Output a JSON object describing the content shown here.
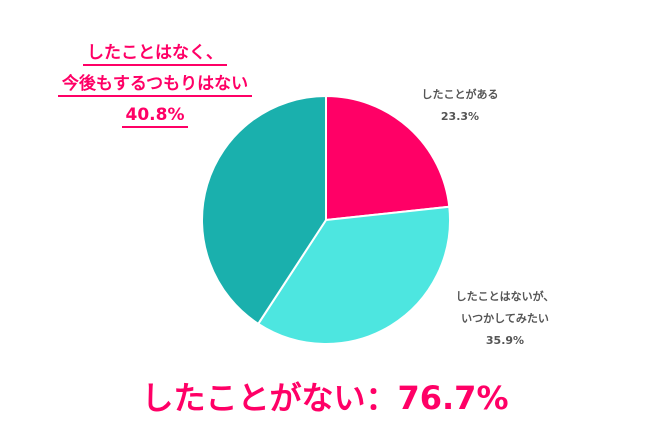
{
  "chart_data": {
    "type": "pie",
    "title": "",
    "slices": [
      {
        "label": "したことがある",
        "value": 23.3,
        "color": "#ff0066"
      },
      {
        "label": "したことはないが、いつかしてみたい",
        "value": 35.9,
        "color": "#4de6e0"
      },
      {
        "label": "したことはなく、今後もするつもりはない",
        "value": 40.8,
        "color": "#1ab0ad"
      }
    ],
    "start_angle": "12 o'clock, clockwise"
  },
  "callout": {
    "line1": "したことはなく、",
    "line2": "今後もするつもりはない",
    "line3": "40.8%"
  },
  "labels": {
    "has_done": {
      "line1": "したことがある",
      "line2": "23.3%"
    },
    "want_to": {
      "line1": "したことはないが、",
      "line2": "いつかしてみたい",
      "line3": "35.9%"
    }
  },
  "summary": "したことがない：76.7%"
}
